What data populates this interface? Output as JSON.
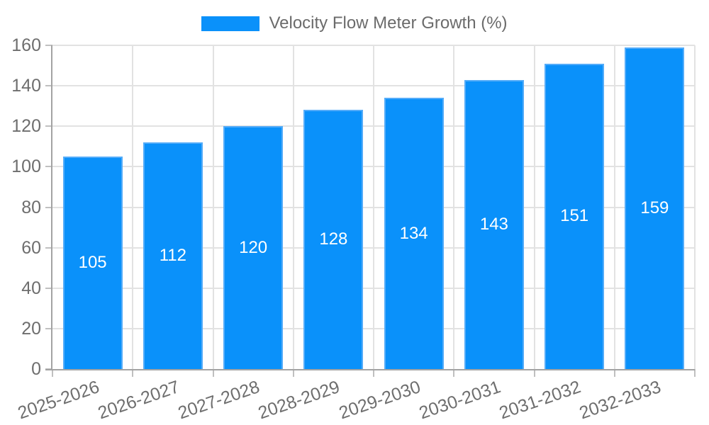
{
  "chart_data": {
    "type": "bar",
    "title": "",
    "legend_label": "Velocity Flow Meter Growth (%)",
    "legend_position": "top",
    "categories": [
      "2025-2026",
      "2026-2027",
      "2027-2028",
      "2028-2029",
      "2029-2030",
      "2030-2031",
      "2031-2032",
      "2032-2033"
    ],
    "values": [
      105,
      112,
      120,
      128,
      134,
      143,
      151,
      159
    ],
    "value_labels": [
      "105",
      "112",
      "120",
      "128",
      "134",
      "143",
      "151",
      "159"
    ],
    "xlabel": "",
    "ylabel": "",
    "ylim": [
      0,
      160
    ],
    "ytick_step": 20,
    "ytick_labels": [
      "0",
      "20",
      "40",
      "60",
      "80",
      "100",
      "120",
      "140",
      "160"
    ],
    "grid": true,
    "colors": {
      "bar_fill": "#0a91fa",
      "bar_border": "#54acf9",
      "value_label": "#ffffff",
      "grid_line": "#e2e2e2",
      "tick_line": "#c0c0c0",
      "axis_line": "#a3a3a3",
      "axis_text": "#6e6e6e",
      "legend_text": "#6b6b6b",
      "background": "#ffffff"
    }
  }
}
